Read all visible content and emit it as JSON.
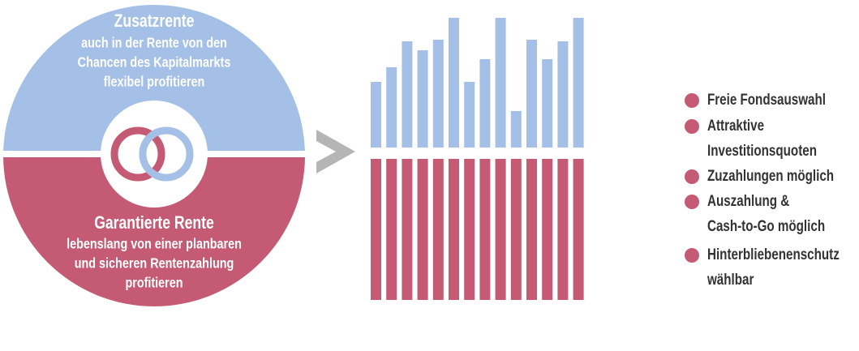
{
  "top": {
    "title": "Zusatzrente",
    "lines": [
      "auch in der Rente von den",
      "Chancen des Kapitalmarkts",
      "flexibel profitieren"
    ]
  },
  "bottom": {
    "title": "Garantierte Rente",
    "lines": [
      "lebenslang von einer planbaren",
      "und sicheren Rentenzahlung",
      "profitieren"
    ]
  },
  "list": {
    "items": [
      {
        "lines": [
          "Freie Fondsauswahl"
        ]
      },
      {
        "lines": [
          "Attraktive",
          "Investitionsquoten"
        ]
      },
      {
        "lines": [
          "Zuzahlungen möglich"
        ]
      },
      {
        "lines": [
          "Auszahlung &",
          "Cash-to-Go möglich"
        ]
      },
      {
        "lines": [
          "Hinterbliebenenschutz",
          "wählbar"
        ]
      }
    ]
  }
}
